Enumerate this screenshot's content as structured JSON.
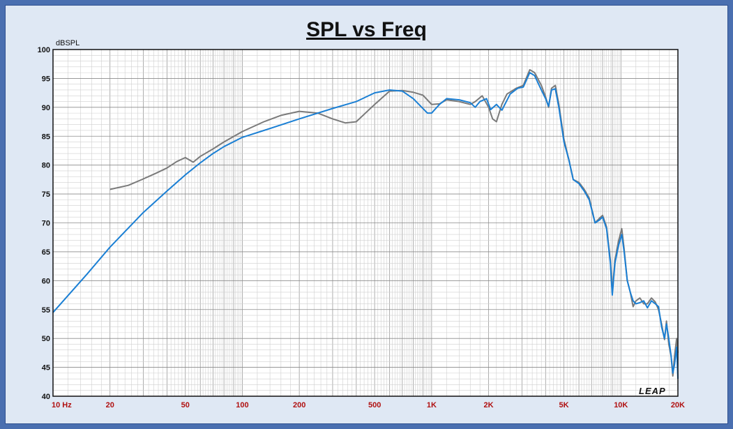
{
  "chart_data": {
    "type": "line",
    "title": "SPL vs Freq",
    "ylabel": "dBSPL",
    "xlabel": "",
    "x_scale": "log",
    "xlim": [
      10,
      20000
    ],
    "ylim": [
      40,
      100
    ],
    "y_ticks": [
      "40",
      "45",
      "50",
      "55",
      "60",
      "65",
      "70",
      "75",
      "80",
      "85",
      "90",
      "95",
      "100"
    ],
    "x_ticks": [
      {
        "value": 10,
        "label": "10  Hz"
      },
      {
        "value": 20,
        "label": "20"
      },
      {
        "value": 50,
        "label": "50"
      },
      {
        "value": 100,
        "label": "100"
      },
      {
        "value": 200,
        "label": "200"
      },
      {
        "value": 500,
        "label": "500"
      },
      {
        "value": 1000,
        "label": "1K"
      },
      {
        "value": 2000,
        "label": "2K"
      },
      {
        "value": 5000,
        "label": "5K"
      },
      {
        "value": 10000,
        "label": "10K"
      },
      {
        "value": 20000,
        "label": "20K"
      }
    ],
    "grid": true,
    "watermark": "LEAP",
    "series": [
      {
        "color": "#1a7fd4",
        "points": [
          [
            10,
            54.5
          ],
          [
            15,
            61
          ],
          [
            20,
            65.8
          ],
          [
            30,
            71.8
          ],
          [
            40,
            75.5
          ],
          [
            50,
            78.3
          ],
          [
            60,
            80.4
          ],
          [
            70,
            82
          ],
          [
            80,
            83.2
          ],
          [
            100,
            84.8
          ],
          [
            130,
            86
          ],
          [
            200,
            88
          ],
          [
            300,
            89.8
          ],
          [
            400,
            91
          ],
          [
            500,
            92.5
          ],
          [
            600,
            93
          ],
          [
            700,
            92.8
          ],
          [
            800,
            91.5
          ],
          [
            950,
            89
          ],
          [
            1000,
            89
          ],
          [
            1100,
            90.5
          ],
          [
            1200,
            91.5
          ],
          [
            1400,
            91.3
          ],
          [
            1600,
            90.8
          ],
          [
            1700,
            90
          ],
          [
            1800,
            91
          ],
          [
            1950,
            91.5
          ],
          [
            2050,
            89.6
          ],
          [
            2200,
            90.5
          ],
          [
            2350,
            89.5
          ],
          [
            2600,
            92.3
          ],
          [
            2850,
            93.3
          ],
          [
            3050,
            93.5
          ],
          [
            3300,
            96
          ],
          [
            3500,
            95.5
          ],
          [
            3800,
            93
          ],
          [
            4000,
            91.5
          ],
          [
            4150,
            90.2
          ],
          [
            4300,
            93
          ],
          [
            4500,
            93.2
          ],
          [
            4700,
            90
          ],
          [
            5000,
            84
          ],
          [
            5300,
            81
          ],
          [
            5600,
            77.5
          ],
          [
            6000,
            76.8
          ],
          [
            6400,
            75.5
          ],
          [
            6800,
            74
          ],
          [
            7300,
            70
          ],
          [
            7700,
            70.5
          ],
          [
            8000,
            71
          ],
          [
            8400,
            69
          ],
          [
            8800,
            63
          ],
          [
            9000,
            57.5
          ],
          [
            9300,
            63
          ],
          [
            9700,
            66
          ],
          [
            10100,
            68
          ],
          [
            10400,
            65
          ],
          [
            10800,
            60
          ],
          [
            11200,
            58
          ],
          [
            11600,
            56.5
          ],
          [
            12000,
            56
          ],
          [
            12600,
            56.2
          ],
          [
            13200,
            56.5
          ],
          [
            13800,
            55.3
          ],
          [
            14500,
            56.5
          ],
          [
            15200,
            56
          ],
          [
            15800,
            55.5
          ],
          [
            16400,
            52
          ],
          [
            17000,
            50
          ],
          [
            17400,
            52.5
          ],
          [
            17900,
            50
          ],
          [
            18400,
            47
          ],
          [
            18800,
            44
          ],
          [
            19200,
            45.5
          ],
          [
            19700,
            48.5
          ],
          [
            20000,
            43
          ]
        ]
      },
      {
        "color": "#7a7a7a",
        "points": [
          [
            20,
            75.8
          ],
          [
            25,
            76.5
          ],
          [
            30,
            77.6
          ],
          [
            35,
            78.6
          ],
          [
            40,
            79.5
          ],
          [
            45,
            80.6
          ],
          [
            50,
            81.3
          ],
          [
            55,
            80.5
          ],
          [
            60,
            81.5
          ],
          [
            70,
            82.8
          ],
          [
            80,
            84
          ],
          [
            100,
            85.8
          ],
          [
            130,
            87.5
          ],
          [
            160,
            88.6
          ],
          [
            200,
            89.3
          ],
          [
            250,
            89
          ],
          [
            300,
            88
          ],
          [
            350,
            87.3
          ],
          [
            400,
            87.5
          ],
          [
            500,
            90.5
          ],
          [
            600,
            92.8
          ],
          [
            700,
            92.9
          ],
          [
            800,
            92.6
          ],
          [
            900,
            92.1
          ],
          [
            1000,
            90.5
          ],
          [
            1100,
            90.6
          ],
          [
            1200,
            91.3
          ],
          [
            1400,
            91
          ],
          [
            1600,
            90.5
          ],
          [
            1700,
            91
          ],
          [
            1850,
            92
          ],
          [
            2000,
            90
          ],
          [
            2100,
            88
          ],
          [
            2200,
            87.5
          ],
          [
            2350,
            90.5
          ],
          [
            2500,
            92.3
          ],
          [
            2800,
            93.3
          ],
          [
            3050,
            93.8
          ],
          [
            3300,
            96.5
          ],
          [
            3500,
            96
          ],
          [
            3800,
            93.8
          ],
          [
            4000,
            91.8
          ],
          [
            4150,
            90
          ],
          [
            4300,
            93.3
          ],
          [
            4500,
            93.8
          ],
          [
            4700,
            90.5
          ],
          [
            5000,
            84.5
          ],
          [
            5300,
            81
          ],
          [
            5600,
            77.5
          ],
          [
            6000,
            77
          ],
          [
            6400,
            75.8
          ],
          [
            6800,
            74.3
          ],
          [
            7300,
            70
          ],
          [
            7700,
            70.8
          ],
          [
            8000,
            71.3
          ],
          [
            8400,
            69.3
          ],
          [
            8800,
            63.5
          ],
          [
            9000,
            58
          ],
          [
            9300,
            63.5
          ],
          [
            9700,
            66.8
          ],
          [
            10100,
            69
          ],
          [
            10400,
            65.5
          ],
          [
            10800,
            60
          ],
          [
            11200,
            58
          ],
          [
            11600,
            55.5
          ],
          [
            12000,
            56.5
          ],
          [
            12600,
            57
          ],
          [
            13200,
            56
          ],
          [
            13800,
            56
          ],
          [
            14500,
            57
          ],
          [
            15200,
            56.3
          ],
          [
            15800,
            55
          ],
          [
            16400,
            52.5
          ],
          [
            17000,
            49.8
          ],
          [
            17400,
            53
          ],
          [
            17900,
            49
          ],
          [
            18400,
            47
          ],
          [
            18800,
            43.5
          ],
          [
            19200,
            47
          ],
          [
            19700,
            50
          ],
          [
            20000,
            47.5
          ]
        ]
      }
    ]
  }
}
